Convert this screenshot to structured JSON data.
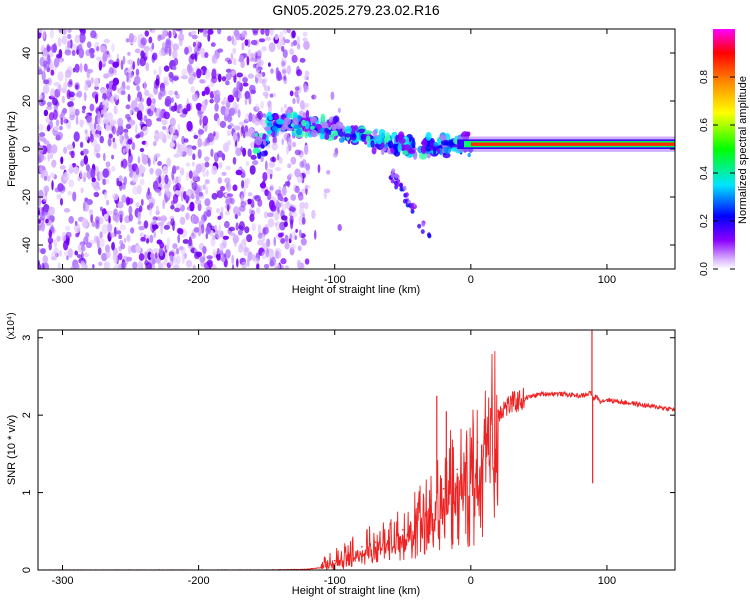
{
  "title": "GN05.2025.279.23.02.R16",
  "chart_data": [
    {
      "type": "heatmap",
      "xlabel": "Height of straight line (km)",
      "ylabel": "Frequency (Hz)",
      "xlim": [
        -318,
        150
      ],
      "ylim": [
        -50,
        50
      ],
      "xticks": [
        -300,
        -200,
        -100,
        0,
        100
      ],
      "yticks": [
        -40,
        -20,
        0,
        20,
        40
      ],
      "grid": false,
      "colorbar": {
        "label": "Normalized spectral amplitude",
        "range": [
          0,
          1
        ],
        "ticks": [
          "0.0",
          "0.2",
          "0.4",
          "0.6",
          "0.8"
        ],
        "colors": [
          "#ffffff",
          "#8a00ff",
          "#0000ff",
          "#00e5ff",
          "#00ff00",
          "#ffff00",
          "#ff8800",
          "#ff0000",
          "#ff00ff"
        ]
      },
      "features": {
        "noise_region_x": [
          -318,
          -130
        ],
        "descending_trend": [
          {
            "x": -150,
            "y": 11
          },
          {
            "x": -120,
            "y": 10
          },
          {
            "x": -100,
            "y": 8
          },
          {
            "x": -80,
            "y": 5
          },
          {
            "x": -60,
            "y": 2
          },
          {
            "x": -40,
            "y": 0
          },
          {
            "x": -20,
            "y": 2
          },
          {
            "x": 0,
            "y": 2
          }
        ],
        "steady_line": {
          "y": 2,
          "x_start": -10,
          "x_end": 150
        }
      }
    },
    {
      "type": "line",
      "xlabel": "Height of straight line (km)",
      "ylabel": "SNR (10 * v/v)",
      "y_multiplier": "(x10⁴)",
      "xlim": [
        -318,
        150
      ],
      "ylim": [
        0,
        3.1
      ],
      "xticks": [
        -300,
        -200,
        -100,
        0,
        100
      ],
      "yticks": [
        0,
        1,
        2,
        3
      ],
      "grid": false,
      "color": "#ee2222",
      "series": [
        {
          "x": [
            -318,
            -250,
            -200,
            -150,
            -120,
            -110,
            -105,
            -100,
            -90,
            -80,
            -70,
            -60,
            -50,
            -40,
            -30,
            -25,
            -20,
            -15,
            -10,
            -5,
            0,
            5,
            10,
            15,
            20,
            25,
            30,
            40,
            50,
            60,
            70,
            80,
            85,
            88,
            90,
            92,
            95,
            100,
            110,
            120,
            130,
            140,
            150
          ],
          "y": [
            0.0,
            0.0,
            0.0,
            0.0,
            0.01,
            0.03,
            0.08,
            0.12,
            0.22,
            0.3,
            0.36,
            0.42,
            0.52,
            0.68,
            0.9,
            1.0,
            1.05,
            1.25,
            1.3,
            1.38,
            1.45,
            1.65,
            1.85,
            1.95,
            2.05,
            2.1,
            2.15,
            2.22,
            2.27,
            2.28,
            2.27,
            2.25,
            2.26,
            2.3,
            2.2,
            2.25,
            2.18,
            2.2,
            2.17,
            2.15,
            2.12,
            2.1,
            2.07
          ]
        }
      ],
      "spikes": [
        {
          "x": -25,
          "y": 2.25
        },
        {
          "x": -18,
          "y": 2.05
        },
        {
          "x": 89,
          "y": 3.1
        },
        {
          "x": 89.5,
          "y": 1.12
        }
      ]
    }
  ]
}
